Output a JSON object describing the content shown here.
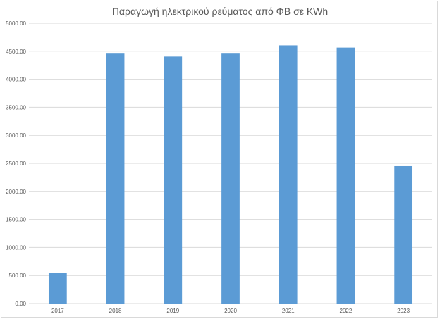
{
  "chart_data": {
    "type": "bar",
    "title": "Παραγωγή ηλεκτρικού ρεύματος από ΦΒ σε KWh",
    "categories": [
      "2017",
      "2018",
      "2019",
      "2020",
      "2021",
      "2022",
      "2023"
    ],
    "series": [
      {
        "values": [
          545,
          4470,
          4405,
          4470,
          4605,
          4565,
          2450
        ]
      }
    ],
    "yticks": [
      "0.00",
      "500.00",
      "1000.00",
      "1500.00",
      "2000.00",
      "2500.00",
      "3000.00",
      "3500.00",
      "4000.00",
      "4500.00",
      "5000.00"
    ],
    "ylim": [
      0,
      5000
    ],
    "grid": true,
    "legend": "none",
    "bar_color": "#5b9bd5",
    "grid_color": "#d9d9d9"
  }
}
